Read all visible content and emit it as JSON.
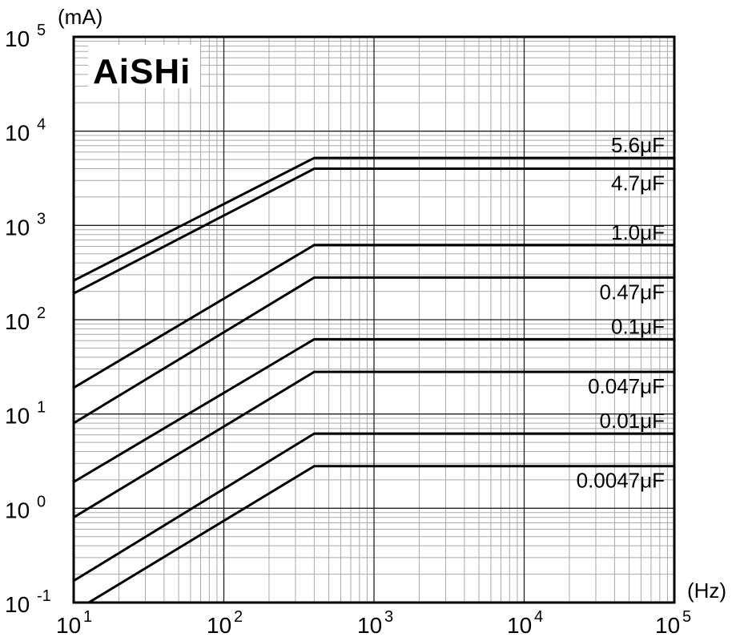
{
  "chart_data": {
    "type": "line",
    "logo": "AiSHi",
    "xlabel": "(Hz)",
    "ylabel": "(mA)",
    "x_scale": "log",
    "y_scale": "log",
    "xlim": [
      10,
      100000
    ],
    "ylim": [
      0.1,
      100000
    ],
    "grid": true,
    "x_ticks": [
      {
        "base": "10",
        "exp": "1"
      },
      {
        "base": "10",
        "exp": "2"
      },
      {
        "base": "10",
        "exp": "3"
      },
      {
        "base": "10",
        "exp": "4"
      },
      {
        "base": "10",
        "exp": "5"
      }
    ],
    "y_ticks": [
      {
        "base": "10",
        "exp": "-1"
      },
      {
        "base": "10",
        "exp": "0"
      },
      {
        "base": "10",
        "exp": "1"
      },
      {
        "base": "10",
        "exp": "2"
      },
      {
        "base": "10",
        "exp": "3"
      },
      {
        "base": "10",
        "exp": "4"
      },
      {
        "base": "10",
        "exp": "5"
      }
    ],
    "series": [
      {
        "name": "5.6μF",
        "x": [
          10,
          400,
          100000
        ],
        "y": [
          260,
          5200,
          5200
        ]
      },
      {
        "name": "4.7μF",
        "x": [
          10,
          400,
          100000
        ],
        "y": [
          190,
          4000,
          4000
        ]
      },
      {
        "name": "1.0μF",
        "x": [
          10,
          400,
          100000
        ],
        "y": [
          19,
          620,
          620
        ]
      },
      {
        "name": "0.47μF",
        "x": [
          10,
          400,
          100000
        ],
        "y": [
          8,
          280,
          280
        ]
      },
      {
        "name": "0.1μF",
        "x": [
          10,
          400,
          100000
        ],
        "y": [
          1.9,
          62,
          62
        ]
      },
      {
        "name": "0.047μF",
        "x": [
          10,
          400,
          100000
        ],
        "y": [
          0.8,
          28,
          28
        ]
      },
      {
        "name": "0.01μF",
        "x": [
          10,
          400,
          100000
        ],
        "y": [
          0.17,
          6.2,
          6.2
        ]
      },
      {
        "name": "0.0047μF",
        "x": [
          10,
          400,
          100000
        ],
        "y": [
          0.08,
          2.8,
          2.8
        ]
      }
    ]
  }
}
